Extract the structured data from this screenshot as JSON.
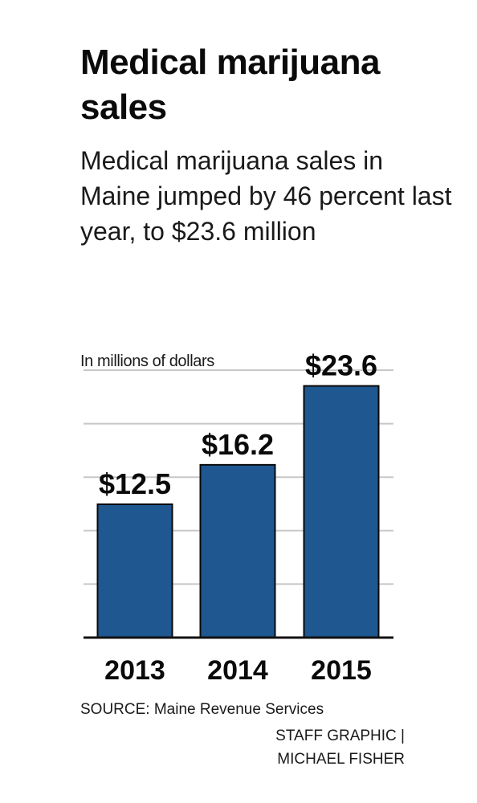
{
  "title": "Medical marijuana sales",
  "subtitle": "Medical marijuana sales in Maine jumped by 46 percent last year, to $23.6 million",
  "source": "SOURCE: Maine Revenue Services",
  "credit": "STAFF GRAPHIC | MICHAEL FISHER",
  "colors": {
    "bar": "#1f5791",
    "bar_outline": "#0a0a0a",
    "grid": "#c8c8c8",
    "baseline": "#111111"
  },
  "chart_data": {
    "type": "bar",
    "title": "Medical marijuana sales",
    "ylabel": "In millions of dollars",
    "xlabel": "",
    "categories": [
      "2013",
      "2014",
      "2015"
    ],
    "values": [
      12.5,
      16.2,
      23.6
    ],
    "value_labels": [
      "$12.5",
      "$16.2",
      "$23.6"
    ],
    "ylim": [
      0,
      25
    ],
    "grid": true,
    "legend": "none"
  }
}
